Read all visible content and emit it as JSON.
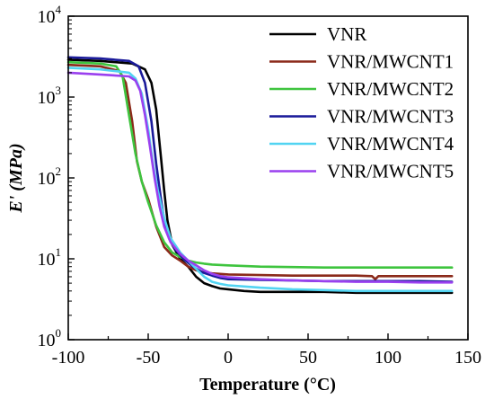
{
  "chart_data": {
    "type": "line",
    "xlabel": "Temperature (°C)",
    "ylabel": "E' (MPa)",
    "xlim": [
      -100,
      150
    ],
    "ylim": [
      1,
      10000
    ],
    "y_scale": "log",
    "x_ticks": [
      {
        "value": -100,
        "label": "-100"
      },
      {
        "value": -50,
        "label": "-50"
      },
      {
        "value": 0,
        "label": "0"
      },
      {
        "value": 50,
        "label": "50"
      },
      {
        "value": 100,
        "label": "100"
      },
      {
        "value": 150,
        "label": "150"
      }
    ],
    "y_ticks": [
      {
        "value": 1,
        "base": "10",
        "exp": "0"
      },
      {
        "value": 10,
        "base": "10",
        "exp": "1"
      },
      {
        "value": 100,
        "base": "10",
        "exp": "2"
      },
      {
        "value": 1000,
        "base": "10",
        "exp": "3"
      },
      {
        "value": 10000,
        "base": "10",
        "exp": "4"
      }
    ],
    "grid": false,
    "legend_position": "top-right",
    "series": [
      {
        "name": "VNR",
        "color": "#000000",
        "x": [
          -100,
          -80,
          -60,
          -52,
          -48,
          -45,
          -42,
          -40,
          -38,
          -35,
          -30,
          -25,
          -20,
          -15,
          -10,
          -5,
          0,
          10,
          20,
          40,
          60,
          80,
          100,
          120,
          140
        ],
        "y": [
          2900,
          2800,
          2600,
          2200,
          1500,
          700,
          180,
          70,
          30,
          15,
          10,
          8,
          6,
          5,
          4.6,
          4.3,
          4.2,
          4.0,
          3.9,
          3.9,
          3.9,
          3.8,
          3.8,
          3.8,
          3.8
        ]
      },
      {
        "name": "VNR/MWCNT1",
        "color": "#8b2a1a",
        "x": [
          -100,
          -80,
          -68,
          -64,
          -60,
          -57,
          -54,
          -50,
          -45,
          -40,
          -35,
          -30,
          -25,
          -20,
          -15,
          -10,
          0,
          20,
          40,
          60,
          80,
          90,
          92,
          94,
          100,
          110,
          120,
          140
        ],
        "y": [
          2500,
          2400,
          2100,
          1500,
          500,
          160,
          90,
          55,
          25,
          14,
          11,
          9.5,
          8,
          7.2,
          6.8,
          6.6,
          6.4,
          6.3,
          6.2,
          6.2,
          6.2,
          6.1,
          5.6,
          6.1,
          6.1,
          6.1,
          6.1,
          6.1
        ]
      },
      {
        "name": "VNR/MWCNT2",
        "color": "#3ec43e",
        "x": [
          -100,
          -80,
          -70,
          -66,
          -62,
          -58,
          -54,
          -50,
          -45,
          -40,
          -35,
          -30,
          -25,
          -20,
          -15,
          -10,
          0,
          20,
          40,
          60,
          80,
          100,
          120,
          140
        ],
        "y": [
          2700,
          2600,
          2400,
          1800,
          600,
          200,
          90,
          50,
          26,
          16,
          12,
          10.5,
          9.5,
          9,
          8.7,
          8.5,
          8.3,
          8.0,
          7.9,
          7.8,
          7.8,
          7.8,
          7.8,
          7.8
        ]
      },
      {
        "name": "VNR/MWCNT3",
        "color": "#1a1a9a",
        "x": [
          -100,
          -80,
          -62,
          -56,
          -52,
          -48,
          -45,
          -42,
          -40,
          -37,
          -33,
          -28,
          -22,
          -16,
          -10,
          -5,
          0,
          20,
          40,
          60,
          80,
          100,
          120,
          140
        ],
        "y": [
          3100,
          3000,
          2800,
          2400,
          1500,
          500,
          150,
          55,
          30,
          18,
          13,
          10,
          8,
          6.8,
          6.2,
          5.8,
          5.6,
          5.5,
          5.4,
          5.3,
          5.3,
          5.3,
          5.3,
          5.2
        ]
      },
      {
        "name": "VNR/MWCNT4",
        "color": "#52d4f2",
        "x": [
          -100,
          -80,
          -62,
          -58,
          -54,
          -50,
          -47,
          -44,
          -40,
          -36,
          -30,
          -25,
          -20,
          -15,
          -10,
          -5,
          0,
          20,
          40,
          60,
          80,
          100,
          120,
          140
        ],
        "y": [
          2300,
          2200,
          2000,
          1700,
          1100,
          400,
          150,
          70,
          32,
          18,
          12,
          9.5,
          7.5,
          6,
          5.2,
          4.9,
          4.7,
          4.4,
          4.2,
          4.1,
          4.0,
          4.0,
          4.0,
          4.0
        ]
      },
      {
        "name": "VNR/MWCNT5",
        "color": "#9a40ef",
        "x": [
          -100,
          -80,
          -62,
          -58,
          -55,
          -52,
          -49,
          -46,
          -43,
          -40,
          -36,
          -30,
          -25,
          -20,
          -15,
          -10,
          -5,
          0,
          20,
          40,
          60,
          80,
          100,
          120,
          140
        ],
        "y": [
          2000,
          1900,
          1800,
          1600,
          1200,
          600,
          250,
          100,
          45,
          25,
          16,
          11.5,
          9.5,
          8.3,
          7.2,
          6.5,
          6.1,
          5.9,
          5.6,
          5.4,
          5.3,
          5.2,
          5.2,
          5.1,
          5.1
        ]
      }
    ]
  }
}
